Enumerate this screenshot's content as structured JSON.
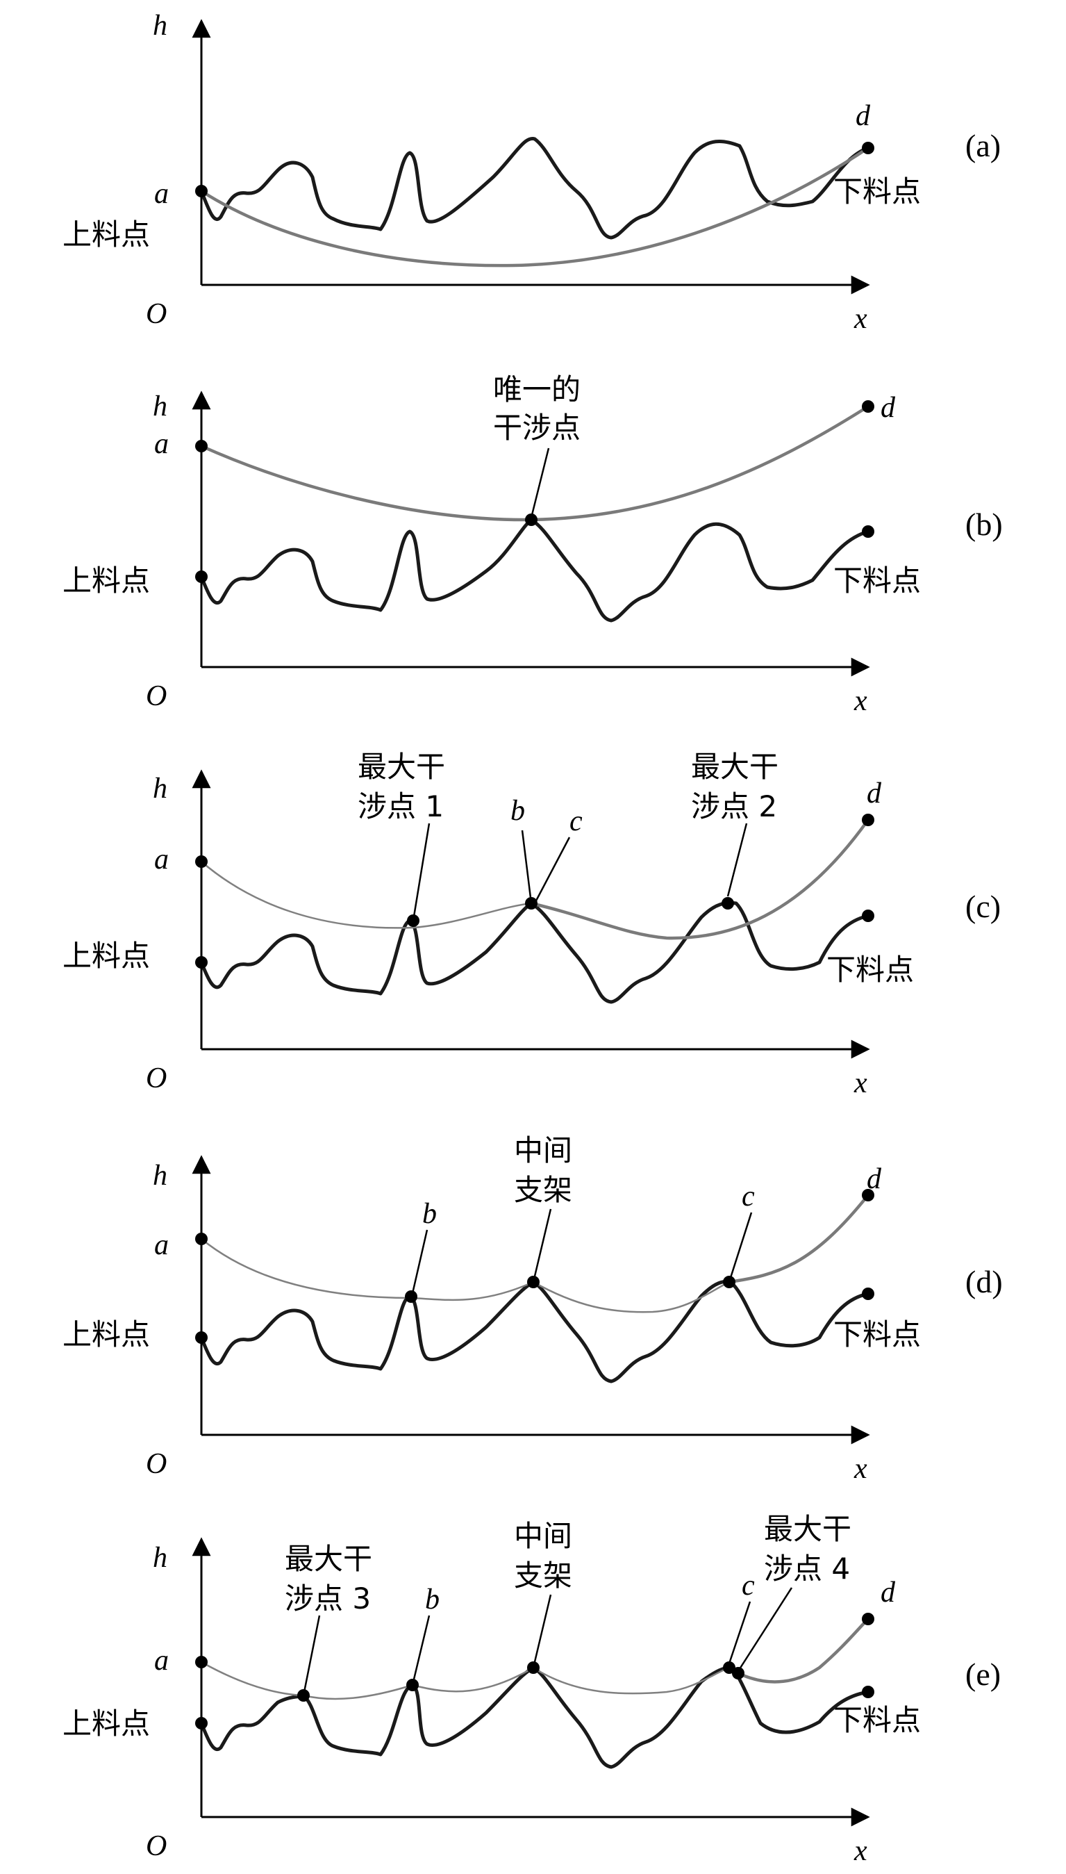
{
  "axes": {
    "y": "h",
    "x": "x",
    "origin": "O"
  },
  "points": {
    "a": "a",
    "b": "b",
    "c": "c",
    "d": "d"
  },
  "labels": {
    "loading_point": "上料点",
    "unloading_point": "下料点",
    "unique_interference_line1": "唯一的",
    "unique_interference_line2": "干涉点",
    "max_interference_line1": "最大干",
    "max_interference_1_line2": "涉点 1",
    "max_interference_2_line2": "涉点 2",
    "max_interference_3_line2": "涉点 3",
    "max_interference_4_line2": "涉点 4",
    "middle_support_line1": "中间",
    "middle_support_line2": "支架"
  },
  "panels": [
    "(a)",
    "(b)",
    "(c)",
    "(d)",
    "(e)"
  ],
  "colors": {
    "terrain": "#1a1a1a",
    "cable": "#7a7a7a",
    "axis": "#000000"
  }
}
